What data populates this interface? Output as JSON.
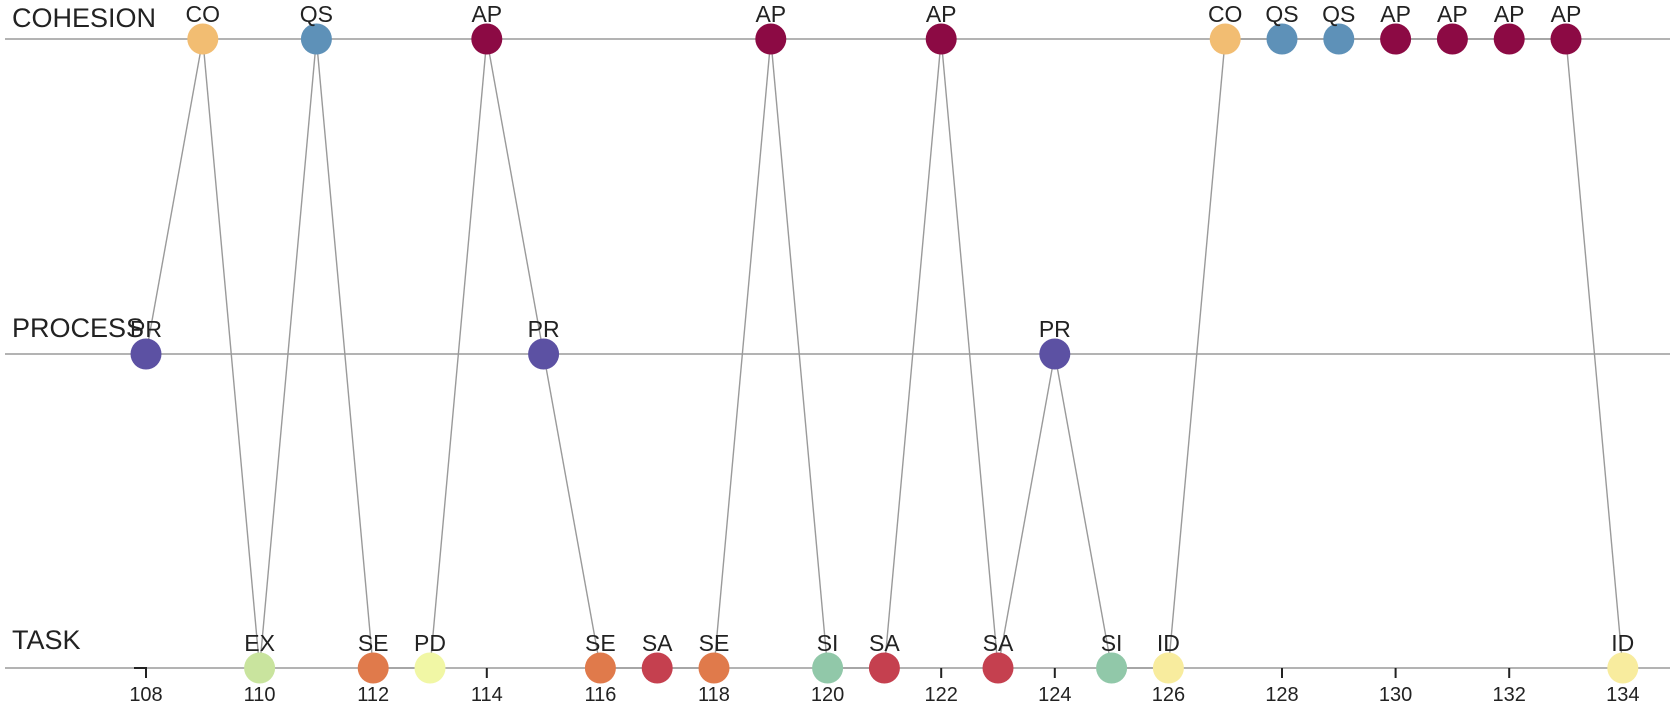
{
  "chart_data": {
    "type": "scatter",
    "title": "",
    "xlabel": "",
    "ylabel": "",
    "xlim": [
      107.4,
      135.8
    ],
    "grid": false,
    "lanes": [
      "COHESION",
      "PROCESS",
      "TASK"
    ],
    "x_ticks": [
      "108",
      "110",
      "112",
      "114",
      "116",
      "118",
      "120",
      "122",
      "124",
      "126",
      "128",
      "130",
      "132",
      "134"
    ],
    "code_colors": {
      "CO": "#f2bd72",
      "QS": "#5e91b8",
      "AP": "#8c0a44",
      "PR": "#5c51a3",
      "EX": "#c9e49e",
      "SE": "#e07a4b",
      "PD": "#f1f7a5",
      "SA": "#c5404f",
      "SI": "#91c8a9",
      "ID": "#f8ec9e"
    },
    "points": [
      {
        "x": 108,
        "lane": "PROCESS",
        "code": "PR"
      },
      {
        "x": 109,
        "lane": "COHESION",
        "code": "CO"
      },
      {
        "x": 110,
        "lane": "TASK",
        "code": "EX"
      },
      {
        "x": 111,
        "lane": "COHESION",
        "code": "QS"
      },
      {
        "x": 112,
        "lane": "TASK",
        "code": "SE"
      },
      {
        "x": 113,
        "lane": "TASK",
        "code": "PD"
      },
      {
        "x": 114,
        "lane": "COHESION",
        "code": "AP"
      },
      {
        "x": 115,
        "lane": "PROCESS",
        "code": "PR"
      },
      {
        "x": 116,
        "lane": "TASK",
        "code": "SE"
      },
      {
        "x": 117,
        "lane": "TASK",
        "code": "SA"
      },
      {
        "x": 118,
        "lane": "TASK",
        "code": "SE"
      },
      {
        "x": 119,
        "lane": "COHESION",
        "code": "AP"
      },
      {
        "x": 120,
        "lane": "TASK",
        "code": "SI"
      },
      {
        "x": 121,
        "lane": "TASK",
        "code": "SA"
      },
      {
        "x": 122,
        "lane": "COHESION",
        "code": "AP"
      },
      {
        "x": 123,
        "lane": "TASK",
        "code": "SA"
      },
      {
        "x": 124,
        "lane": "PROCESS",
        "code": "PR"
      },
      {
        "x": 125,
        "lane": "TASK",
        "code": "SI"
      },
      {
        "x": 126,
        "lane": "TASK",
        "code": "ID"
      },
      {
        "x": 127,
        "lane": "COHESION",
        "code": "CO"
      },
      {
        "x": 128,
        "lane": "COHESION",
        "code": "QS"
      },
      {
        "x": 129,
        "lane": "COHESION",
        "code": "QS"
      },
      {
        "x": 130,
        "lane": "COHESION",
        "code": "AP"
      },
      {
        "x": 131,
        "lane": "COHESION",
        "code": "AP"
      },
      {
        "x": 132,
        "lane": "COHESION",
        "code": "AP"
      },
      {
        "x": 133,
        "lane": "COHESION",
        "code": "AP"
      },
      {
        "x": 134,
        "lane": "TASK",
        "code": "ID"
      }
    ]
  }
}
